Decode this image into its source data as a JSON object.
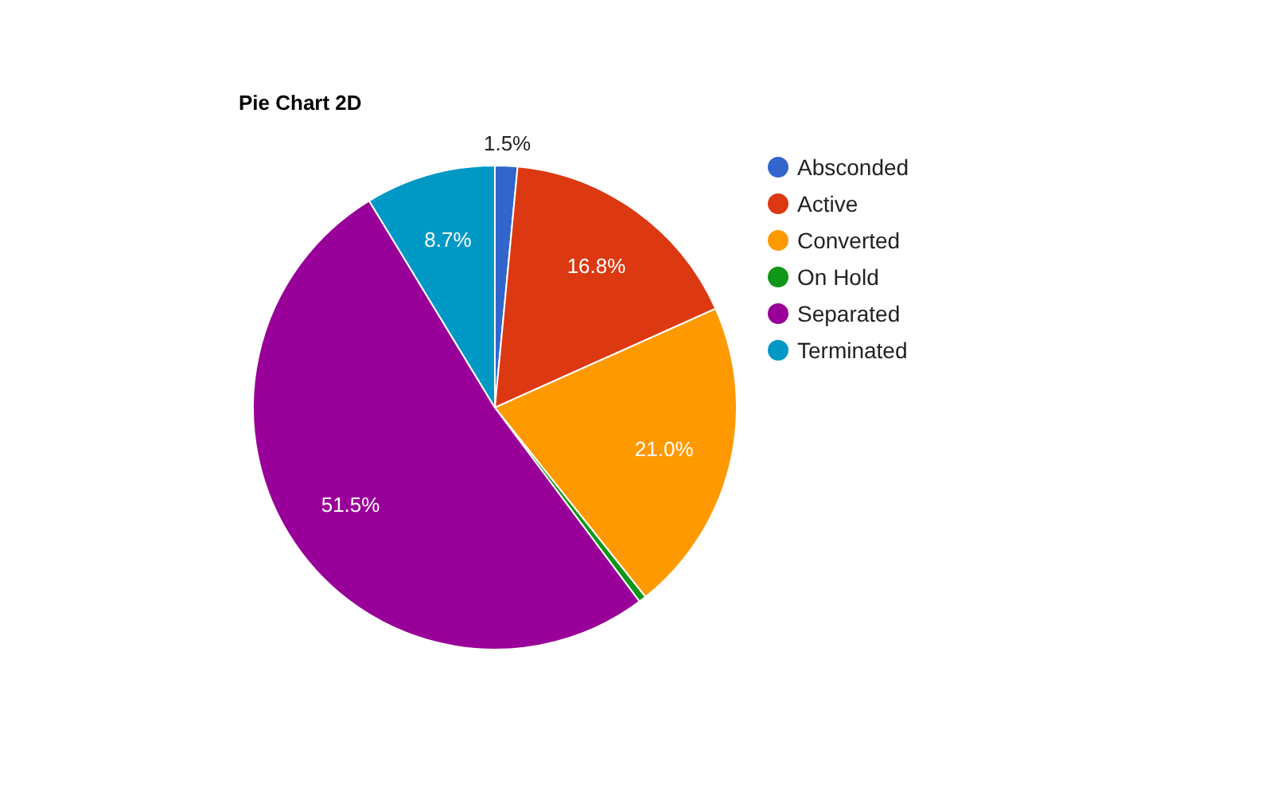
{
  "chart_data": {
    "type": "pie",
    "title": "Pie Chart 2D",
    "categories": [
      "Absconded",
      "Active",
      "Converted",
      "On Hold",
      "Separated",
      "Terminated"
    ],
    "values": [
      1.5,
      16.8,
      21.0,
      0.5,
      51.5,
      8.7
    ],
    "colors": [
      "#3366cc",
      "#dc3912",
      "#ff9900",
      "#109618",
      "#990099",
      "#0099c6"
    ],
    "value_labels": [
      "1.5%",
      "16.8%",
      "21.0%",
      null,
      "51.5%",
      "8.7%"
    ],
    "legend": "top right"
  }
}
